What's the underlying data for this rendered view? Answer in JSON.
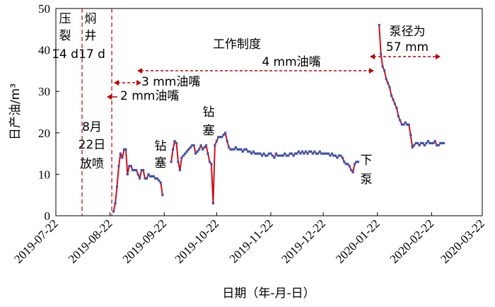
{
  "chart_data": {
    "type": "line",
    "title": "",
    "xlabel": "日期（年-月-日）",
    "ylabel": "日产油/m³",
    "ylim": [
      0,
      50
    ],
    "yticks": [
      0,
      10,
      20,
      30,
      40,
      50
    ],
    "xlim": [
      "2019-07-22",
      "2020-03-22"
    ],
    "xticks": [
      "2019-07-22",
      "2019-08-22",
      "2019-09-22",
      "2019-10-22",
      "2019-11-22",
      "2019-12-22",
      "2020-01-22",
      "2020-02-22",
      "2020-03-22"
    ],
    "line_color": "#d0101a",
    "marker_color": "#3a55b0",
    "series": [
      {
        "name": "",
        "segments": [
          [
            [
              "2019-08-24",
              1
            ],
            [
              "2019-08-25",
              3
            ],
            [
              "2019-08-26",
              7
            ],
            [
              "2019-08-27",
              12
            ],
            [
              "2019-08-28",
              15
            ],
            [
              "2019-08-29",
              14
            ],
            [
              "2019-08-30",
              16
            ],
            [
              "2019-08-31",
              16
            ],
            [
              "2019-09-01",
              10
            ],
            [
              "2019-09-02",
              12
            ],
            [
              "2019-09-03",
              12
            ],
            [
              "2019-09-04",
              11
            ],
            [
              "2019-09-05",
              11
            ],
            [
              "2019-09-06",
              11
            ],
            [
              "2019-09-07",
              10
            ],
            [
              "2019-09-08",
              9
            ],
            [
              "2019-09-09",
              11
            ],
            [
              "2019-09-10",
              11
            ],
            [
              "2019-09-11",
              9
            ],
            [
              "2019-09-12",
              9
            ],
            [
              "2019-09-13",
              10
            ],
            [
              "2019-09-14",
              9.5
            ],
            [
              "2019-09-15",
              9.5
            ],
            [
              "2019-09-16",
              9.5
            ],
            [
              "2019-09-17",
              9
            ],
            [
              "2019-09-18",
              9
            ],
            [
              "2019-09-19",
              8.5
            ],
            [
              "2019-09-20",
              8
            ],
            [
              "2019-09-21",
              5
            ]
          ],
          [
            [
              "2019-09-26",
              13
            ],
            [
              "2019-09-27",
              16
            ],
            [
              "2019-09-28",
              18
            ],
            [
              "2019-09-29",
              17.5
            ],
            [
              "2019-09-30",
              13
            ],
            [
              "2019-10-01",
              11
            ],
            [
              "2019-10-02",
              14
            ],
            [
              "2019-10-03",
              14.5
            ],
            [
              "2019-10-04",
              15
            ],
            [
              "2019-10-05",
              15.5
            ],
            [
              "2019-10-06",
              16
            ],
            [
              "2019-10-07",
              16.5
            ],
            [
              "2019-10-08",
              17
            ],
            [
              "2019-10-09",
              17
            ],
            [
              "2019-10-10",
              15
            ],
            [
              "2019-10-11",
              15.5
            ],
            [
              "2019-10-12",
              16
            ],
            [
              "2019-10-13",
              17
            ],
            [
              "2019-10-14",
              16
            ],
            [
              "2019-10-15",
              16.5
            ],
            [
              "2019-10-16",
              17
            ],
            [
              "2019-10-17",
              15
            ],
            [
              "2019-10-18",
              13
            ],
            [
              "2019-10-19",
              12.5
            ],
            [
              "2019-10-20",
              3
            ],
            [
              "2019-10-21",
              17
            ],
            [
              "2019-10-22",
              18
            ],
            [
              "2019-10-23",
              19
            ],
            [
              "2019-10-24",
              19
            ],
            [
              "2019-10-25",
              19
            ],
            [
              "2019-10-26",
              19.5
            ],
            [
              "2019-10-27",
              20
            ],
            [
              "2019-10-28",
              18
            ],
            [
              "2019-10-29",
              16.5
            ],
            [
              "2019-10-30",
              16
            ],
            [
              "2019-10-31",
              16
            ],
            [
              "2019-11-01",
              16
            ],
            [
              "2019-11-02",
              16.5
            ],
            [
              "2019-11-03",
              16
            ],
            [
              "2019-11-04",
              16
            ],
            [
              "2019-11-05",
              16
            ],
            [
              "2019-11-06",
              15.5
            ],
            [
              "2019-11-07",
              16
            ],
            [
              "2019-11-08",
              16
            ],
            [
              "2019-11-09",
              15.5
            ],
            [
              "2019-11-10",
              15.5
            ],
            [
              "2019-11-11",
              15
            ],
            [
              "2019-11-12",
              15.5
            ],
            [
              "2019-11-13",
              15
            ],
            [
              "2019-11-14",
              15
            ],
            [
              "2019-11-15",
              15
            ],
            [
              "2019-11-16",
              15
            ],
            [
              "2019-11-17",
              14.5
            ],
            [
              "2019-11-18",
              15
            ],
            [
              "2019-11-19",
              14.5
            ],
            [
              "2019-11-20",
              14.5
            ],
            [
              "2019-11-21",
              15
            ],
            [
              "2019-11-22",
              15
            ],
            [
              "2019-11-23",
              14.5
            ],
            [
              "2019-11-24",
              14
            ],
            [
              "2019-11-25",
              15
            ],
            [
              "2019-11-26",
              14.5
            ],
            [
              "2019-11-27",
              14.5
            ],
            [
              "2019-11-28",
              14.5
            ],
            [
              "2019-11-29",
              14.5
            ],
            [
              "2019-11-30",
              15
            ],
            [
              "2019-12-01",
              14.5
            ],
            [
              "2019-12-02",
              14.5
            ],
            [
              "2019-12-03",
              15
            ],
            [
              "2019-12-04",
              15
            ],
            [
              "2019-12-05",
              14.5
            ],
            [
              "2019-12-06",
              15
            ],
            [
              "2019-12-07",
              15
            ],
            [
              "2019-12-08",
              15.5
            ],
            [
              "2019-12-09",
              15
            ],
            [
              "2019-12-10",
              15.5
            ],
            [
              "2019-12-11",
              15
            ],
            [
              "2019-12-12",
              15.5
            ],
            [
              "2019-12-13",
              15
            ],
            [
              "2019-12-14",
              15.5
            ],
            [
              "2019-12-15",
              15.5
            ],
            [
              "2019-12-16",
              15
            ],
            [
              "2019-12-17",
              15.5
            ],
            [
              "2019-12-18",
              15
            ],
            [
              "2019-12-19",
              15
            ],
            [
              "2019-12-20",
              15.5
            ],
            [
              "2019-12-21",
              15
            ],
            [
              "2019-12-22",
              15
            ],
            [
              "2019-12-23",
              15
            ],
            [
              "2019-12-24",
              15
            ],
            [
              "2019-12-25",
              15
            ],
            [
              "2019-12-26",
              14.5
            ],
            [
              "2019-12-27",
              15
            ],
            [
              "2019-12-28",
              14.5
            ],
            [
              "2019-12-29",
              14.5
            ],
            [
              "2019-12-30",
              14
            ],
            [
              "2019-12-31",
              14.5
            ],
            [
              "2020-01-01",
              14.5
            ],
            [
              "2020-01-02",
              14
            ],
            [
              "2020-01-03",
              13
            ],
            [
              "2020-01-04",
              12.5
            ],
            [
              "2020-01-05",
              12.5
            ],
            [
              "2020-01-06",
              12
            ],
            [
              "2020-01-07",
              11
            ],
            [
              "2020-01-08",
              10.5
            ],
            [
              "2020-01-09",
              12.5
            ],
            [
              "2020-01-10",
              13
            ],
            [
              "2020-01-11",
              13
            ]
          ],
          [
            [
              "2020-01-23",
              46
            ],
            [
              "2020-01-24",
              39
            ],
            [
              "2020-01-25",
              36
            ],
            [
              "2020-01-26",
              35
            ],
            [
              "2020-01-27",
              33
            ],
            [
              "2020-01-28",
              32
            ],
            [
              "2020-01-29",
              31
            ],
            [
              "2020-01-30",
              29
            ],
            [
              "2020-01-31",
              28
            ],
            [
              "2020-02-01",
              27
            ],
            [
              "2020-02-02",
              26
            ],
            [
              "2020-02-03",
              24
            ],
            [
              "2020-02-04",
              23
            ],
            [
              "2020-02-05",
              22
            ],
            [
              "2020-02-06",
              22
            ],
            [
              "2020-02-07",
              22.5
            ],
            [
              "2020-02-08",
              22
            ],
            [
              "2020-02-09",
              22
            ],
            [
              "2020-02-10",
              19.5
            ],
            [
              "2020-02-11",
              16.5
            ],
            [
              "2020-02-12",
              17
            ],
            [
              "2020-02-13",
              17.5
            ],
            [
              "2020-02-14",
              17.5
            ],
            [
              "2020-02-15",
              17
            ],
            [
              "2020-02-16",
              17.5
            ],
            [
              "2020-02-17",
              17.5
            ],
            [
              "2020-02-18",
              17
            ],
            [
              "2020-02-19",
              17.5
            ],
            [
              "2020-02-20",
              18
            ],
            [
              "2020-02-21",
              17.5
            ],
            [
              "2020-02-22",
              17.5
            ],
            [
              "2020-02-23",
              17.5
            ],
            [
              "2020-02-24",
              18
            ],
            [
              "2020-02-25",
              17
            ],
            [
              "2020-02-26",
              17
            ],
            [
              "2020-02-27",
              17.5
            ],
            [
              "2020-02-28",
              17.5
            ],
            [
              "2020-02-29",
              17.5
            ]
          ]
        ]
      }
    ],
    "phase_lines": [
      "2019-08-06",
      "2019-08-23"
    ],
    "annotations": {
      "yali": "压",
      "lie": "裂",
      "d14": "14 d",
      "men": "焖",
      "jing": "井",
      "d17": "17 d",
      "aug": "8月",
      "day22": "22日",
      "fangpen": "放喷",
      "gongzuo": "工作制度",
      "mm4": "4 mm油嘴",
      "mm3": "3 mm油嘴",
      "mm2": "2 mm油嘴",
      "zuan1a": "钻",
      "sai1a": "塞",
      "zuan2a": "钻",
      "sai2a": "塞",
      "xia": "下",
      "beng": "泵",
      "bengjing": "泵径为",
      "mm57": "57 mm"
    }
  }
}
